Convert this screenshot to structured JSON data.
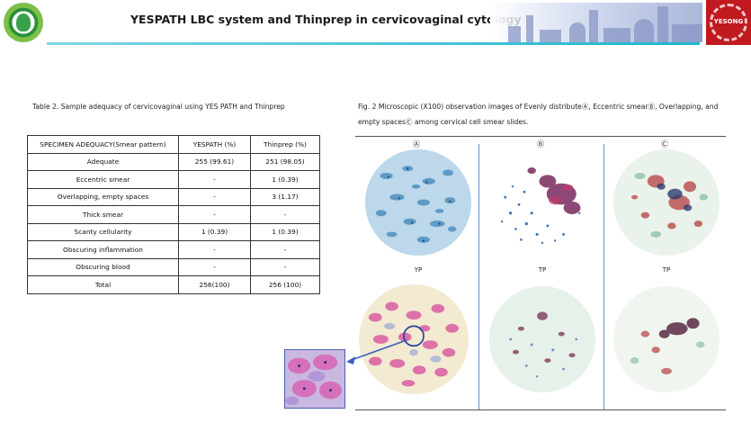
{
  "header": {
    "title": "YESPATH LBC system and Thinprep in cervicovaginal cytology",
    "right_logo_text": "YESONG"
  },
  "table": {
    "caption": "Table 2. Sample adequacy of cervicovaginal using YES PATH and Thinprep",
    "columns": [
      "SPECIMEN ADEQUACY(Smear pattern)",
      "YESPATH (%)",
      "Thinprep (%)"
    ],
    "rows": [
      [
        "Adequate",
        "255 (99.61)",
        "251 (98.05)"
      ],
      [
        "Eccentric smear",
        "-",
        "1 (0.39)"
      ],
      [
        "Overlapping, empty spaces",
        "-",
        "3 (1.17)"
      ],
      [
        "Thick smear",
        "-",
        "-"
      ],
      [
        "Scanty cellularity",
        "1 (0.39)",
        "1 (0.39)"
      ],
      [
        "Obscuring inflammation",
        "-",
        "-"
      ],
      [
        "Obscuring blood",
        "-",
        "-"
      ],
      [
        "Total",
        "256(100)",
        "256 (100)"
      ]
    ]
  },
  "figure": {
    "caption": "Fig. 2 Microscopic (X100) observation images of Evenly distributeⒶ, Eccentric smearⒷ, Overlapping, and empty spacesⒸ among cervical cell smear slides.",
    "column_labels": [
      "Ⓐ",
      "Ⓑ",
      "Ⓒ"
    ],
    "row_labels": [
      "YP",
      "TP",
      "TP"
    ]
  },
  "colors": {
    "header_line": "#1fb5cf",
    "logo_red": "#c0191f",
    "separator_blue": "#6a8cc9"
  }
}
